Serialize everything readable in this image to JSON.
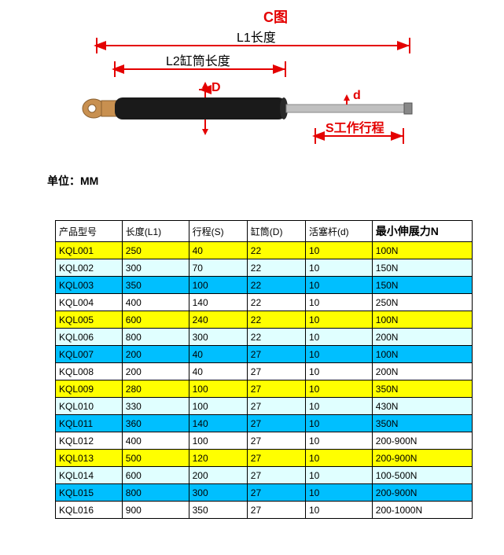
{
  "diagram": {
    "title": "C图",
    "title_color": "#e40000",
    "labels": {
      "L1": "L1长度",
      "L2": "L2缸筒长度",
      "D": "D",
      "d": "d",
      "S": "S工作行程"
    },
    "colors": {
      "dimension_line": "#e40000",
      "text_red": "#e40000",
      "cylinder_body": "#1a1a1a",
      "rod": "#b0b0b0",
      "eyelet": "#c89050",
      "background": "#ffffff"
    },
    "unit_label": "单位：MM"
  },
  "table": {
    "columns": [
      "产品型号",
      "长度(L1)",
      "行程(S)",
      "缸筒(D)",
      "活塞杆(d)",
      "最小伸展力N"
    ],
    "column_widths": [
      "16%",
      "16%",
      "14%",
      "14%",
      "16%",
      "24%"
    ],
    "row_color_classes": {
      "yellow": "#ffff00",
      "lightcyan": "#e0ffff",
      "deepsky": "#00bfff",
      "white": "#ffffff"
    },
    "rows": [
      {
        "cells": [
          "KQL001",
          "250",
          "40",
          "22",
          "10",
          "100N"
        ],
        "color": "yellow"
      },
      {
        "cells": [
          "KQL002",
          "300",
          "70",
          "22",
          "10",
          "150N"
        ],
        "color": "lightcyan"
      },
      {
        "cells": [
          "KQL003",
          "350",
          "100",
          "22",
          "10",
          "150N"
        ],
        "color": "deepsky"
      },
      {
        "cells": [
          "KQL004",
          "400",
          "140",
          "22",
          "10",
          "250N"
        ],
        "color": "white"
      },
      {
        "cells": [
          "KQL005",
          "600",
          "240",
          "22",
          "10",
          "100N"
        ],
        "color": "yellow"
      },
      {
        "cells": [
          "KQL006",
          "800",
          "300",
          "22",
          "10",
          "200N"
        ],
        "color": "lightcyan"
      },
      {
        "cells": [
          "KQL007",
          "200",
          "40",
          "27",
          "10",
          "100N"
        ],
        "color": "deepsky"
      },
      {
        "cells": [
          "KQL008",
          "200",
          "40",
          "27",
          "10",
          "200N"
        ],
        "color": "white"
      },
      {
        "cells": [
          "KQL009",
          "280",
          "100",
          "27",
          "10",
          "350N"
        ],
        "color": "yellow"
      },
      {
        "cells": [
          "KQL010",
          "330",
          "100",
          "27",
          "10",
          "430N"
        ],
        "color": "lightcyan"
      },
      {
        "cells": [
          "KQL011",
          "360",
          "140",
          "27",
          "10",
          "350N"
        ],
        "color": "deepsky"
      },
      {
        "cells": [
          "KQL012",
          "400",
          "100",
          "27",
          "10",
          "200-900N"
        ],
        "color": "white"
      },
      {
        "cells": [
          "KQL013",
          "500",
          "120",
          "27",
          "10",
          "200-900N"
        ],
        "color": "yellow"
      },
      {
        "cells": [
          "KQL014",
          "600",
          "200",
          "27",
          "10",
          "100-500N"
        ],
        "color": "lightcyan"
      },
      {
        "cells": [
          "KQL015",
          "800",
          "300",
          "27",
          "10",
          "200-900N"
        ],
        "color": "deepsky"
      },
      {
        "cells": [
          "KQL016",
          "900",
          "350",
          "27",
          "10",
          "200-1000N"
        ],
        "color": "white"
      }
    ]
  }
}
